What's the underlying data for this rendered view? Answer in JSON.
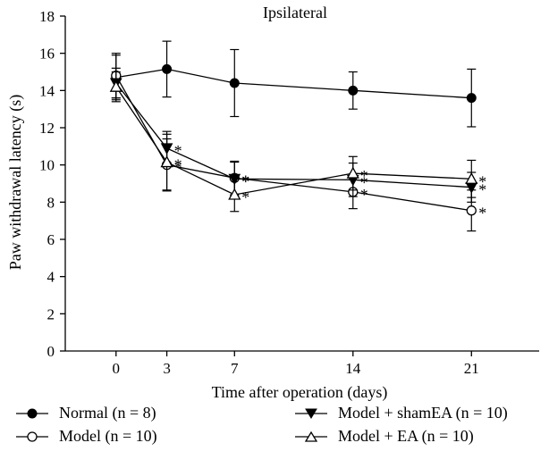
{
  "chart_data": {
    "type": "line",
    "title": "Ipsilateral",
    "xlabel": "Time after operation (days)",
    "ylabel": "Paw withdrawal latency (s)",
    "x": [
      0,
      3,
      7,
      14,
      21
    ],
    "x_tick_labels": [
      "0",
      "3",
      "7",
      "14",
      "21"
    ],
    "ylim": [
      0,
      18
    ],
    "y_ticks": [
      0,
      2,
      4,
      6,
      8,
      10,
      12,
      14,
      16,
      18
    ],
    "grid": false,
    "legend_position": "bottom",
    "significance_marker": "*",
    "series": [
      {
        "name": "Normal (n = 8)",
        "marker": "filled-circle",
        "values": [
          14.7,
          15.15,
          14.4,
          14.0,
          13.6
        ],
        "errors": [
          1.2,
          1.5,
          1.8,
          1.0,
          1.55
        ],
        "significant": [
          false,
          false,
          false,
          false,
          false
        ]
      },
      {
        "name": "Model (n = 10)",
        "marker": "open-circle",
        "values": [
          14.8,
          10.0,
          9.3,
          8.55,
          7.55
        ],
        "errors": [
          1.2,
          1.4,
          0.9,
          0.9,
          1.1
        ],
        "significant": [
          false,
          true,
          true,
          true,
          true
        ]
      },
      {
        "name": "Model + shamEA (n = 10)",
        "marker": "filled-triangle-down",
        "values": [
          14.4,
          10.9,
          9.25,
          9.2,
          8.8
        ],
        "errors": [
          0.8,
          0.9,
          0.9,
          0.9,
          0.8
        ],
        "significant": [
          false,
          true,
          true,
          true,
          true
        ]
      },
      {
        "name": "Model + EA (n = 10)",
        "marker": "open-triangle-up",
        "values": [
          14.2,
          10.15,
          8.4,
          9.55,
          9.25
        ],
        "errors": [
          0.8,
          1.5,
          0.9,
          0.9,
          1.0
        ],
        "significant": [
          false,
          true,
          true,
          true,
          true
        ]
      }
    ]
  }
}
